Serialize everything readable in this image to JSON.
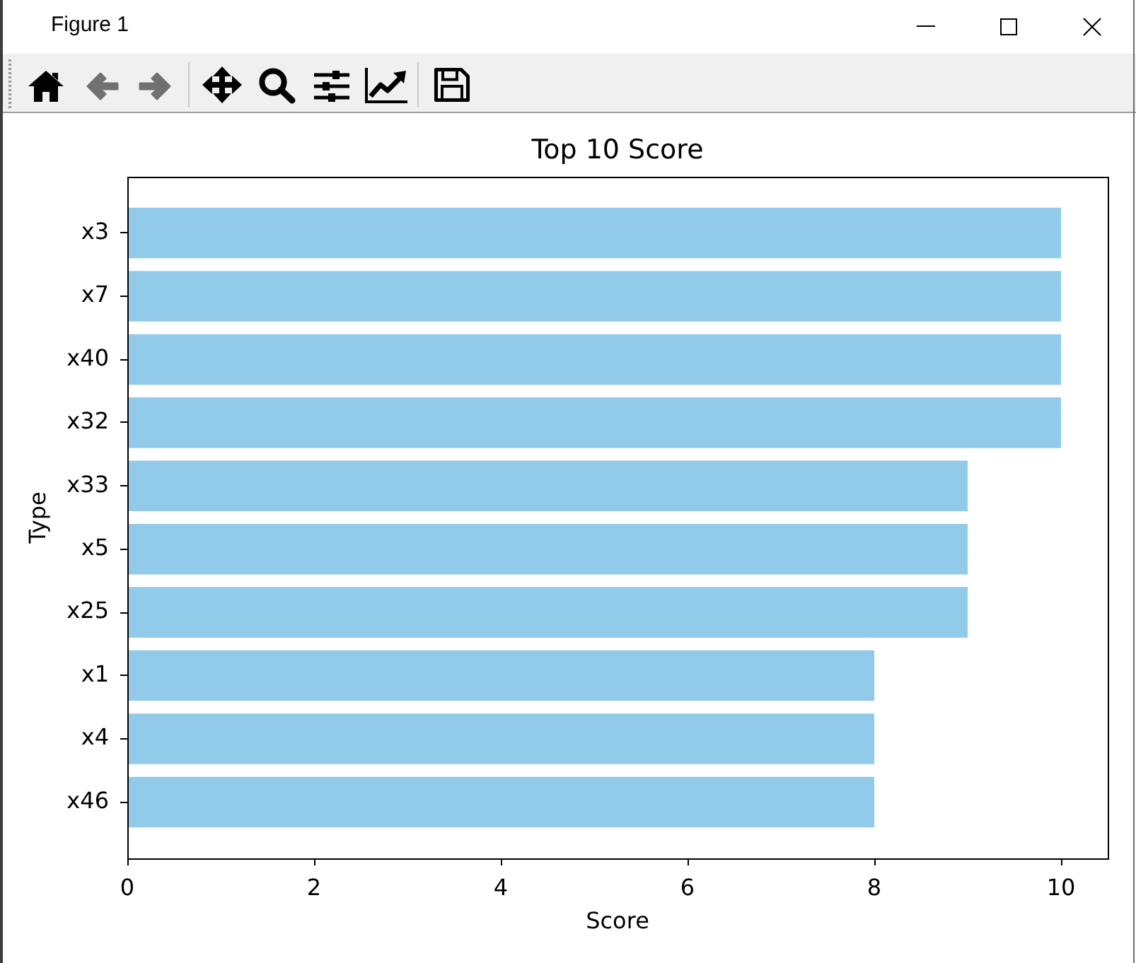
{
  "chart_data": {
    "type": "bar",
    "orientation": "horizontal",
    "title": "Top 10 Score",
    "xlabel": "Score",
    "ylabel": "Type",
    "categories": [
      "x3",
      "x7",
      "x40",
      "x32",
      "x33",
      "x5",
      "x25",
      "x1",
      "x4",
      "x46"
    ],
    "values": [
      10,
      10,
      10,
      10,
      9,
      9,
      9,
      8,
      8,
      8
    ],
    "color": "#92cbe9",
    "xlim": [
      0,
      10.5
    ],
    "xticks": [
      0,
      2,
      4,
      6,
      8,
      10
    ],
    "annotations": [
      "Figure 1"
    ]
  }
}
